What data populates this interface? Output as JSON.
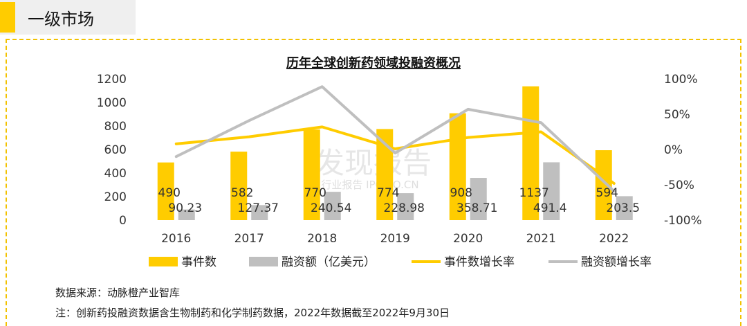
{
  "header": {
    "title": "一级市场",
    "accent_color": "#FFCC00"
  },
  "chart_data": {
    "type": "bar",
    "title": "历年全球创新药领域投融资概况",
    "categories": [
      "2016",
      "2017",
      "2018",
      "2019",
      "2020",
      "2021",
      "2022"
    ],
    "series": [
      {
        "name": "事件数",
        "type": "bar",
        "axis": "left",
        "color": "#FFCC00",
        "values": [
          490,
          582,
          770,
          774,
          908,
          1137,
          594
        ],
        "labels": [
          "490",
          "582",
          "770",
          "774",
          "908",
          "1137",
          "594"
        ]
      },
      {
        "name": "融资额（亿美元）",
        "type": "bar",
        "axis": "left",
        "color": "#BFBFBF",
        "values": [
          90.23,
          127.37,
          240.54,
          228.98,
          358.71,
          491.4,
          203.5
        ],
        "labels": [
          "90.23",
          "127.37",
          "240.54",
          "228.98",
          "358.71",
          "491.4",
          "203.5"
        ]
      },
      {
        "name": "事件数增长率",
        "type": "line",
        "axis": "right",
        "color": "#FFCC00",
        "values": [
          8,
          18,
          32,
          1,
          17,
          25,
          -48
        ]
      },
      {
        "name": "融资额增长率",
        "type": "line",
        "axis": "right",
        "color": "#BFBFBF",
        "values": [
          -10,
          41,
          89,
          -5,
          57,
          38,
          -59
        ]
      }
    ],
    "ylim_left": [
      0,
      1200
    ],
    "yticks_left": [
      "0",
      "200",
      "400",
      "600",
      "800",
      "1000",
      "1200"
    ],
    "ylim_right": [
      -100,
      100
    ],
    "yticks_right": [
      "-100%",
      "-50%",
      "0%",
      "50%",
      "100%"
    ],
    "grid": false,
    "legend_position": "bottom"
  },
  "watermark": {
    "line1": "发现报告",
    "line2": "行业报告 IPOIPO.CN"
  },
  "notes": {
    "source": "数据来源：动脉橙产业智库",
    "footnote": "注：创新药投融资数据含生物制药和化学制药数据，2022年数据截至2022年9月30日"
  }
}
